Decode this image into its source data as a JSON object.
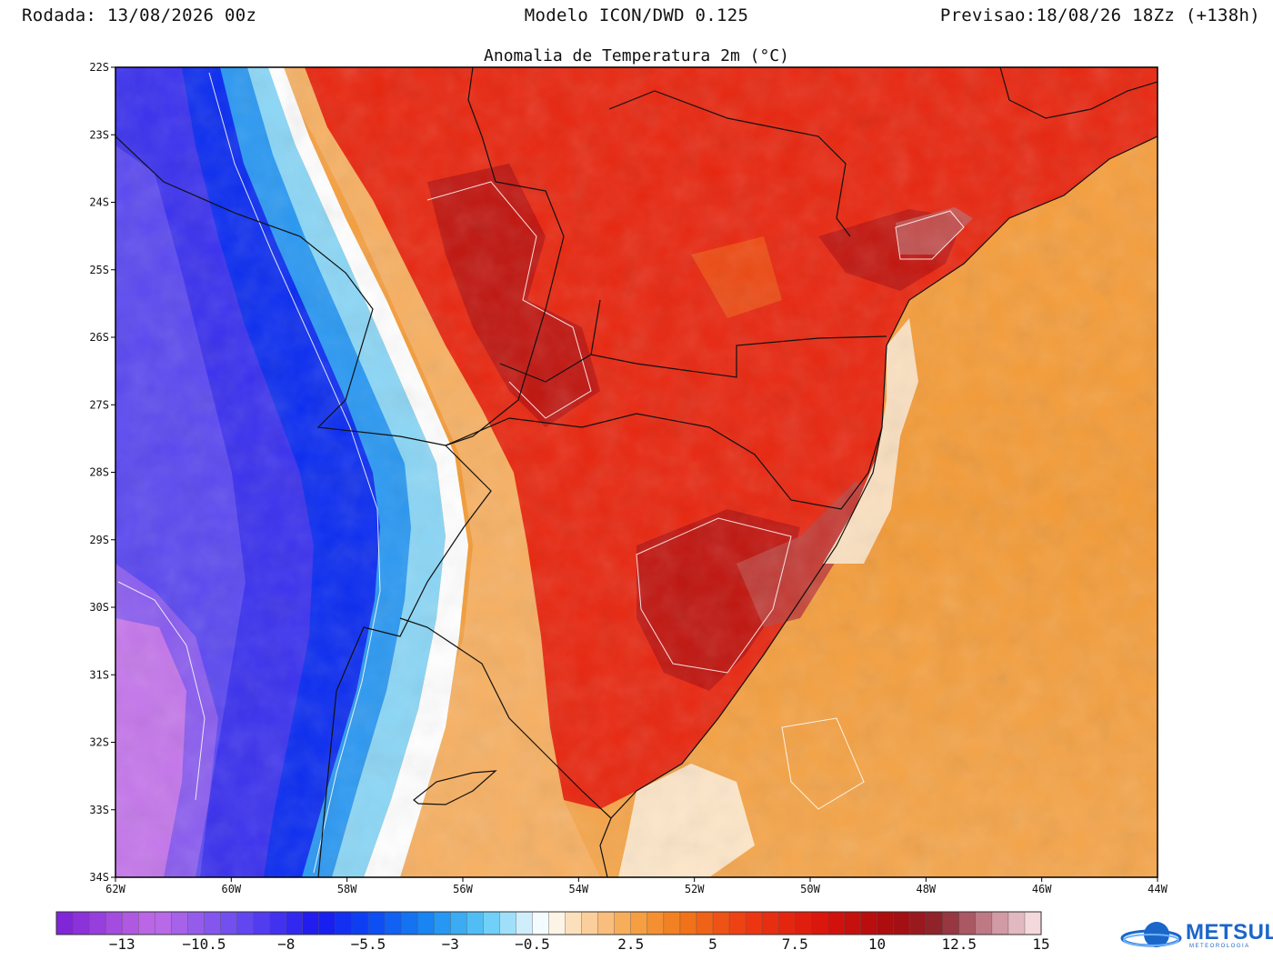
{
  "header": {
    "run": "Rodada: 13/08/2026 00z",
    "model": "Modelo ICON/DWD 0.125",
    "forecast": "Previsao:18/08/26 18Zz (+138h)"
  },
  "map": {
    "title": "Anomalia de Temperatura 2m (°C)",
    "lat_labels": [
      "22S",
      "23S",
      "24S",
      "25S",
      "26S",
      "27S",
      "28S",
      "29S",
      "30S",
      "31S",
      "32S",
      "33S",
      "34S"
    ],
    "lon_labels": [
      "62W",
      "60W",
      "58W",
      "56W",
      "54W",
      "52W",
      "50W",
      "48W",
      "46W",
      "44W"
    ],
    "extent": {
      "west": -62,
      "east": -44,
      "north": -22,
      "south": -34
    }
  },
  "colorbar": {
    "min": -15,
    "step": 0.5,
    "labels": [
      "-13",
      "-10.5",
      "-8",
      "-5.5",
      "-3",
      "-0.5",
      "2.5",
      "5",
      "7.5",
      "10",
      "12.5",
      "15"
    ],
    "stops": [
      {
        "v": -15,
        "c": "#7a1fd6"
      },
      {
        "v": -12,
        "c": "#c06ce6"
      },
      {
        "v": -9.5,
        "c": "#6a4cf0"
      },
      {
        "v": -7,
        "c": "#1a18ee"
      },
      {
        "v": -5.5,
        "c": "#0b46f3"
      },
      {
        "v": -3.5,
        "c": "#1b8ef2"
      },
      {
        "v": -2,
        "c": "#5ac8f6"
      },
      {
        "v": -0.5,
        "c": "#e6f6fc"
      },
      {
        "v": 0,
        "c": "#ffffff"
      },
      {
        "v": 0.5,
        "c": "#fde8cc"
      },
      {
        "v": 2.5,
        "c": "#f7a54a"
      },
      {
        "v": 4,
        "c": "#f07a1a"
      },
      {
        "v": 6,
        "c": "#ef3a12"
      },
      {
        "v": 8.5,
        "c": "#d8120c"
      },
      {
        "v": 10.5,
        "c": "#a60c0e"
      },
      {
        "v": 12,
        "c": "#8c2630"
      },
      {
        "v": 13.5,
        "c": "#c88a96"
      },
      {
        "v": 15,
        "c": "#fbe7ea"
      }
    ]
  },
  "logo": {
    "text": "METSUL",
    "sub": "METEOROLOGIA"
  }
}
